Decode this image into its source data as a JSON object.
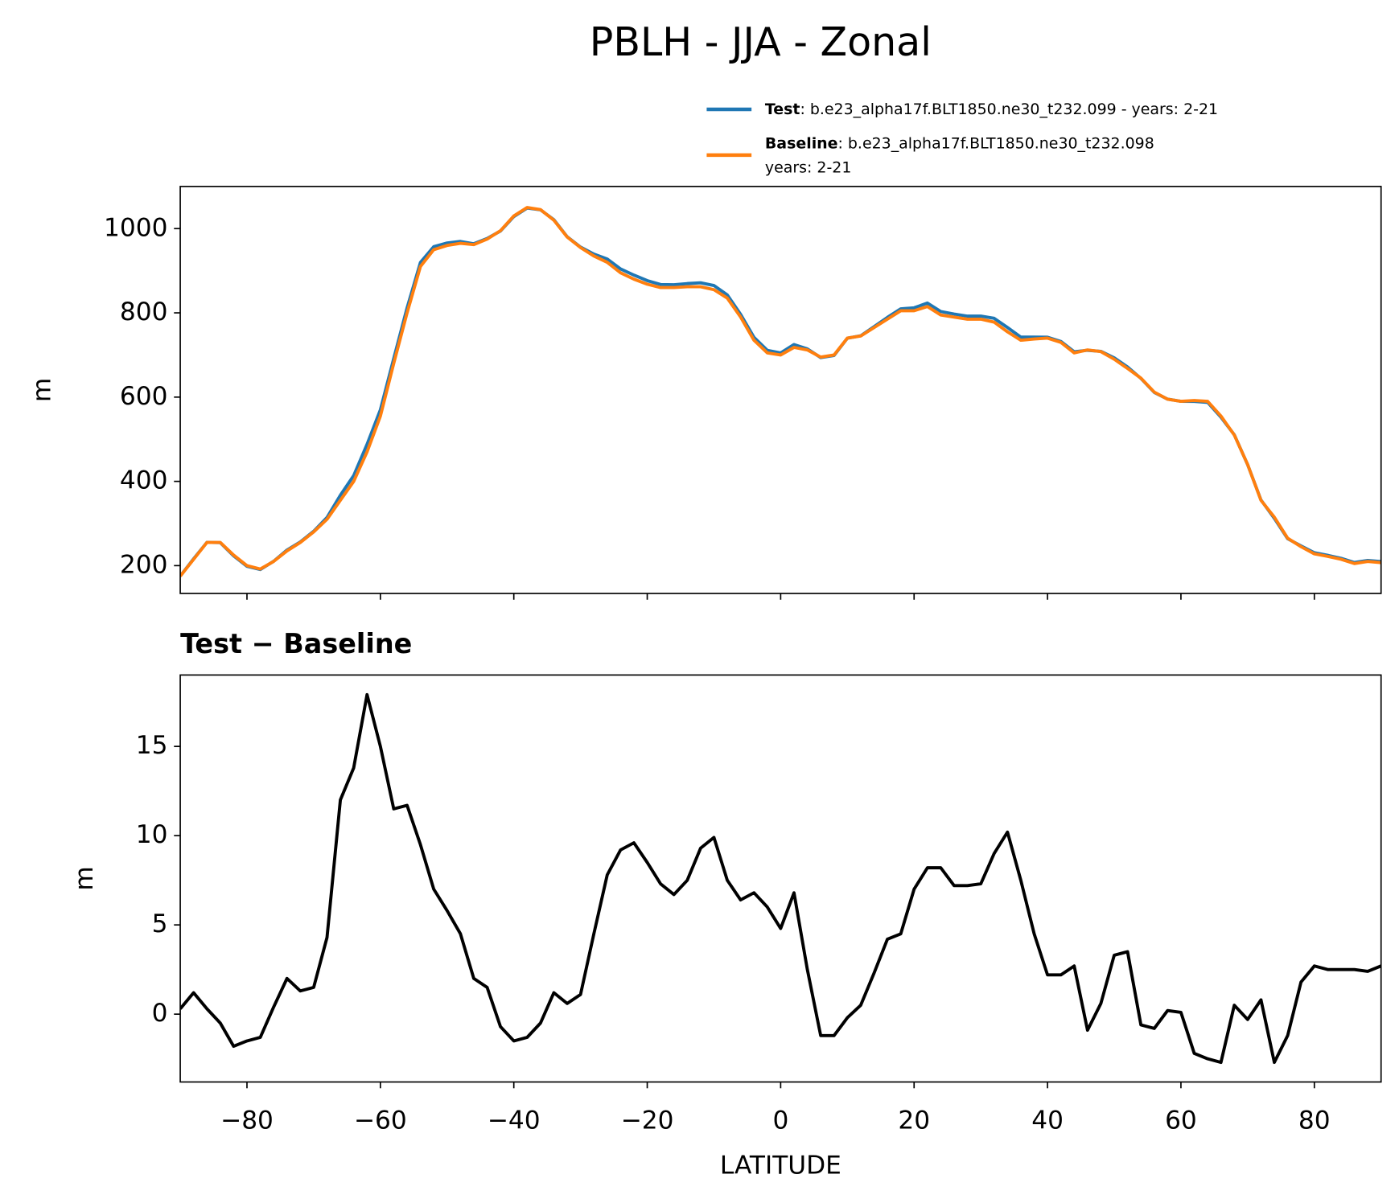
{
  "title": "PBLH - JJA - Zonal",
  "chart_data": [
    {
      "type": "line",
      "ylabel": "m",
      "x": [
        -90,
        -88,
        -86,
        -84,
        -82,
        -80,
        -78,
        -76,
        -74,
        -72,
        -70,
        -68,
        -66,
        -64,
        -62,
        -60,
        -58,
        -56,
        -54,
        -52,
        -50,
        -48,
        -46,
        -44,
        -42,
        -40,
        -38,
        -36,
        -34,
        -32,
        -30,
        -28,
        -26,
        -24,
        -22,
        -20,
        -18,
        -16,
        -14,
        -12,
        -10,
        -8,
        -6,
        -4,
        -2,
        0,
        2,
        4,
        6,
        8,
        10,
        12,
        14,
        16,
        18,
        20,
        22,
        24,
        26,
        28,
        30,
        32,
        34,
        36,
        38,
        40,
        42,
        44,
        46,
        48,
        50,
        52,
        54,
        56,
        58,
        60,
        62,
        64,
        66,
        68,
        70,
        72,
        74,
        76,
        78,
        80,
        82,
        84,
        86,
        88,
        90
      ],
      "series": [
        {
          "name": "Test",
          "description": [
            ": b.e23_alpha17f.BLT1850.ne30_t232.099 - years: 2-21"
          ],
          "color": "#1f77b4",
          "values": [
            175.3,
            216.2,
            255.3,
            254.5,
            223.2,
            198.5,
            190.7,
            210.4,
            237,
            256.3,
            281.5,
            314.3,
            367,
            413.8,
            487.9,
            570,
            691.5,
            811.7,
            919.5,
            957,
            965.8,
            969.5,
            964,
            976.5,
            994.3,
            1028.5,
            1048.7,
            1044.5,
            1021.2,
            980.6,
            956.1,
            939.5,
            927.8,
            904.2,
            889.6,
            876.5,
            867.3,
            866.7,
            869.5,
            871.3,
            864.9,
            842.5,
            796.4,
            741.8,
            711,
            704.8,
            724.8,
            714.5,
            693.8,
            698.8,
            739.8,
            745.5,
            767.3,
            789.2,
            809.5,
            812,
            823.2,
            803.2,
            797.2,
            792.2,
            792.3,
            787,
            765.2,
            742.5,
            742.5,
            742.2,
            732.2,
            707.7,
            711.1,
            708.6,
            693.3,
            671.5,
            644.4,
            611.2,
            595.2,
            590.1,
            589.8,
            587.5,
            552.3,
            510.5,
            439.7,
            355.8,
            312.3,
            263.8,
            246.8,
            230.7,
            224.5,
            217.5,
            207.5,
            212.4,
            209.7
          ]
        },
        {
          "name": "Baseline",
          "description": [
            ": b.e23_alpha17f.BLT1850.ne30_t232.098",
            "years: 2-21"
          ],
          "color": "#ff7f0e",
          "values": [
            175,
            215,
            255,
            255,
            225,
            200,
            192,
            210,
            235,
            255,
            280,
            310,
            355,
            400,
            470,
            555,
            680,
            800,
            910,
            950,
            960,
            965,
            962,
            975,
            995,
            1030,
            1050,
            1045,
            1020,
            980,
            955,
            935,
            920,
            895,
            880,
            868,
            860,
            860,
            862,
            862,
            855,
            835,
            790,
            735,
            705,
            700,
            718,
            712,
            695,
            700,
            740,
            745,
            765,
            785,
            805,
            805,
            815,
            795,
            790,
            785,
            785,
            778,
            755,
            735,
            738,
            740,
            730,
            705,
            712,
            708,
            690,
            668,
            645,
            612,
            595,
            590,
            592,
            590,
            555,
            510,
            440,
            355,
            315,
            265,
            245,
            228,
            222,
            215,
            205,
            210,
            207
          ]
        }
      ],
      "xlim": [
        -90,
        90
      ],
      "xticks": [
        -80,
        -60,
        -40,
        -20,
        0,
        20,
        40,
        60,
        80
      ],
      "ylim": [
        134,
        1100
      ],
      "yticks": [
        200,
        400,
        600,
        800,
        1000
      ]
    },
    {
      "type": "line",
      "title": "Test − Baseline",
      "ylabel": "m",
      "xlabel": "LATITUDE",
      "color": "#000000",
      "x": [
        -90,
        -88,
        -86,
        -84,
        -82,
        -80,
        -78,
        -76,
        -74,
        -72,
        -70,
        -68,
        -66,
        -64,
        -62,
        -60,
        -58,
        -56,
        -54,
        -52,
        -50,
        -48,
        -46,
        -44,
        -42,
        -40,
        -38,
        -36,
        -34,
        -32,
        -30,
        -28,
        -26,
        -24,
        -22,
        -20,
        -18,
        -16,
        -14,
        -12,
        -10,
        -8,
        -6,
        -4,
        -2,
        0,
        2,
        4,
        6,
        8,
        10,
        12,
        14,
        16,
        18,
        20,
        22,
        24,
        26,
        28,
        30,
        32,
        34,
        36,
        38,
        40,
        42,
        44,
        46,
        48,
        50,
        52,
        54,
        56,
        58,
        60,
        62,
        64,
        66,
        68,
        70,
        72,
        74,
        76,
        78,
        80,
        82,
        84,
        86,
        88,
        90
      ],
      "values": [
        0.3,
        1.2,
        0.3,
        -0.5,
        -1.8,
        -1.5,
        -1.3,
        0.4,
        2.0,
        1.3,
        1.5,
        4.3,
        12,
        13.8,
        17.9,
        15,
        11.5,
        11.7,
        9.5,
        7,
        5.8,
        4.5,
        2,
        1.5,
        -0.7,
        -1.5,
        -1.3,
        -0.5,
        1.2,
        0.6,
        1.1,
        4.5,
        7.8,
        9.2,
        9.6,
        8.5,
        7.3,
        6.7,
        7.5,
        9.3,
        9.9,
        7.5,
        6.4,
        6.8,
        6.0,
        4.8,
        6.8,
        2.5,
        -1.2,
        -1.2,
        -0.2,
        0.5,
        2.3,
        4.2,
        4.5,
        7,
        8.2,
        8.2,
        7.2,
        7.2,
        7.3,
        9,
        10.2,
        7.5,
        4.5,
        2.2,
        2.2,
        2.7,
        -0.9,
        0.6,
        3.3,
        3.5,
        -0.6,
        -0.8,
        0.2,
        0.1,
        -2.2,
        -2.5,
        -2.7,
        0.5,
        -0.3,
        0.8,
        -2.7,
        -1.2,
        1.8,
        2.7,
        2.5,
        2.5,
        2.5,
        2.4,
        2.7
      ],
      "xlim": [
        -90,
        90
      ],
      "xticks": [
        {
          "value": -80,
          "label": "−80"
        },
        {
          "value": -60,
          "label": "−60"
        },
        {
          "value": -40,
          "label": "−40"
        },
        {
          "value": -20,
          "label": "−20"
        },
        0,
        20,
        40,
        60,
        80
      ],
      "ylim": [
        -3.8,
        19.0
      ],
      "yticks": [
        0,
        5,
        10,
        15
      ]
    }
  ]
}
